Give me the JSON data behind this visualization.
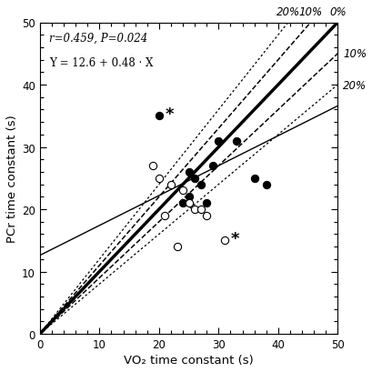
{
  "filled_x": [
    20,
    24,
    25,
    25,
    26,
    27,
    28,
    29,
    30,
    33,
    36,
    38
  ],
  "filled_y": [
    35,
    21,
    22,
    26,
    25,
    24,
    21,
    27,
    31,
    31,
    25,
    24
  ],
  "open_x": [
    19,
    20,
    21,
    22,
    23,
    24,
    25,
    26,
    27,
    28,
    31
  ],
  "open_y": [
    27,
    25,
    19,
    24,
    14,
    23,
    21,
    20,
    20,
    19,
    15
  ],
  "filled_outlier_x": 20,
  "filled_outlier_y": 35,
  "open_outlier_x": 31,
  "open_outlier_y": 15,
  "regression_intercept": 12.6,
  "regression_slope": 0.48,
  "annotation_text_line1": "r=0.459, P=0.024",
  "annotation_text_line2": "Y = 12.6 + 0.48 · X",
  "xlabel": "VO₂ time constant (s)",
  "ylabel": "PCr time constant (s)",
  "xlim": [
    0,
    50
  ],
  "ylim": [
    0,
    50
  ],
  "xticks": [
    0,
    10,
    20,
    30,
    40,
    50
  ],
  "yticks": [
    0,
    10,
    20,
    30,
    40,
    50
  ],
  "background_color": "#ffffff"
}
